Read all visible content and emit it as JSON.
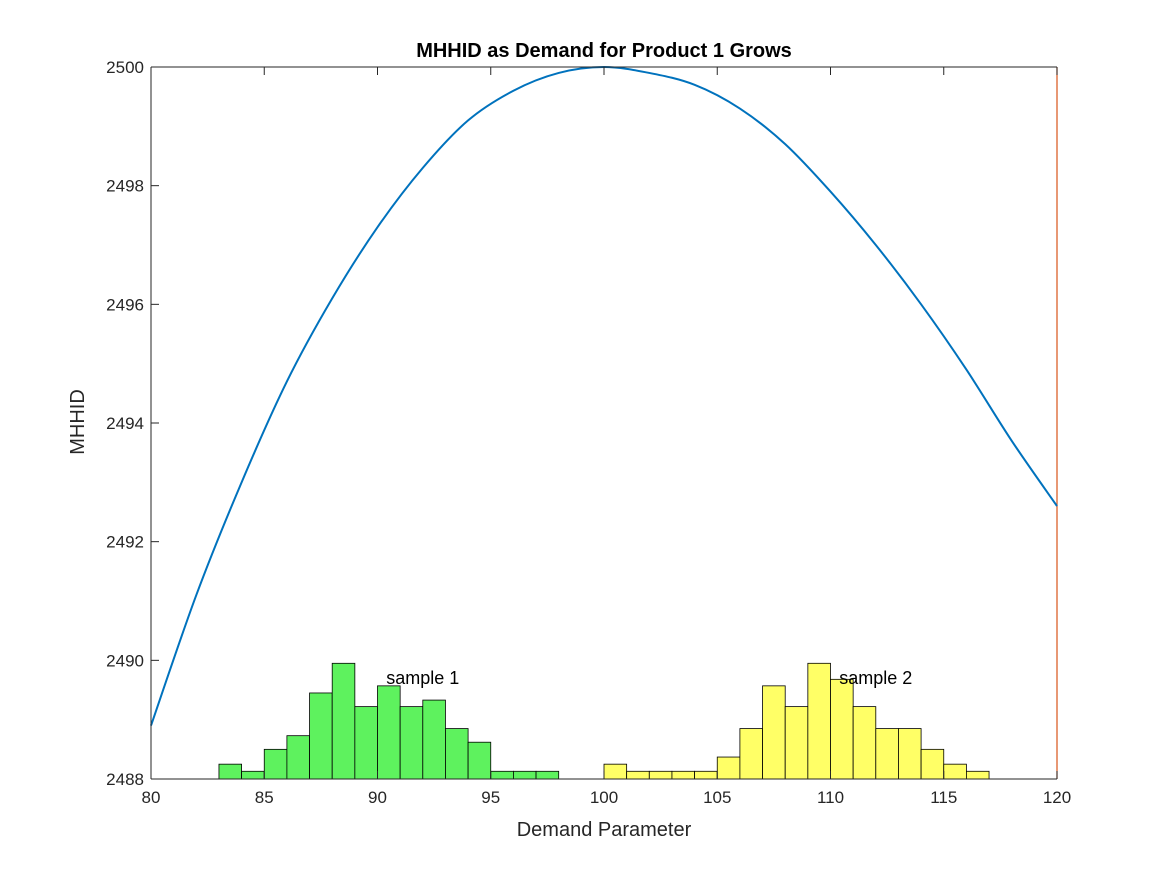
{
  "chart_data": {
    "type": "line",
    "title": "MHHID as Demand for Product 1 Grows",
    "xlabel": "Demand Parameter",
    "ylabel": "MHHID",
    "xlim": [
      80,
      120
    ],
    "ylim": [
      2488,
      2500
    ],
    "xticks": [
      80,
      85,
      90,
      95,
      100,
      105,
      110,
      115,
      120
    ],
    "yticks": [
      2488,
      2490,
      2492,
      2494,
      2496,
      2498,
      2500
    ],
    "grid": false,
    "curve": {
      "x": [
        80,
        82,
        84,
        86,
        88,
        90,
        92,
        94,
        96,
        98,
        100,
        102,
        104,
        106,
        108,
        110,
        112,
        114,
        116,
        118,
        120
      ],
      "y": [
        2488.9,
        2491.1,
        2493.0,
        2494.7,
        2496.1,
        2497.3,
        2498.3,
        2499.1,
        2499.6,
        2499.9,
        2500.0,
        2499.9,
        2499.7,
        2499.3,
        2498.7,
        2497.9,
        2497.0,
        2496.0,
        2494.9,
        2493.7,
        2492.6
      ],
      "color": "#0072BD"
    },
    "vertical_line": {
      "x": 120,
      "color": "#D95319"
    },
    "histograms": [
      {
        "name": "sample 1",
        "label": "sample 1",
        "label_pos": [
          92,
          2489.7
        ],
        "color": "#5EF25E",
        "bin_start": 83,
        "bin_width": 1,
        "heights": [
          2488.25,
          2488.13,
          2488.5,
          2488.73,
          2489.45,
          2489.95,
          2489.22,
          2489.57,
          2489.22,
          2489.33,
          2488.85,
          2488.62,
          2488.13,
          2488.13,
          2488.13
        ]
      },
      {
        "name": "sample 2",
        "label": "sample 2",
        "label_pos": [
          112,
          2489.7
        ],
        "color": "#FFFF66",
        "bin_start": 100,
        "bin_width": 1,
        "heights": [
          2488.25,
          2488.13,
          2488.13,
          2488.13,
          2488.13,
          2488.37,
          2488.85,
          2489.57,
          2489.22,
          2489.95,
          2489.68,
          2489.22,
          2488.85,
          2488.85,
          2488.5,
          2488.25,
          2488.13
        ]
      }
    ]
  }
}
